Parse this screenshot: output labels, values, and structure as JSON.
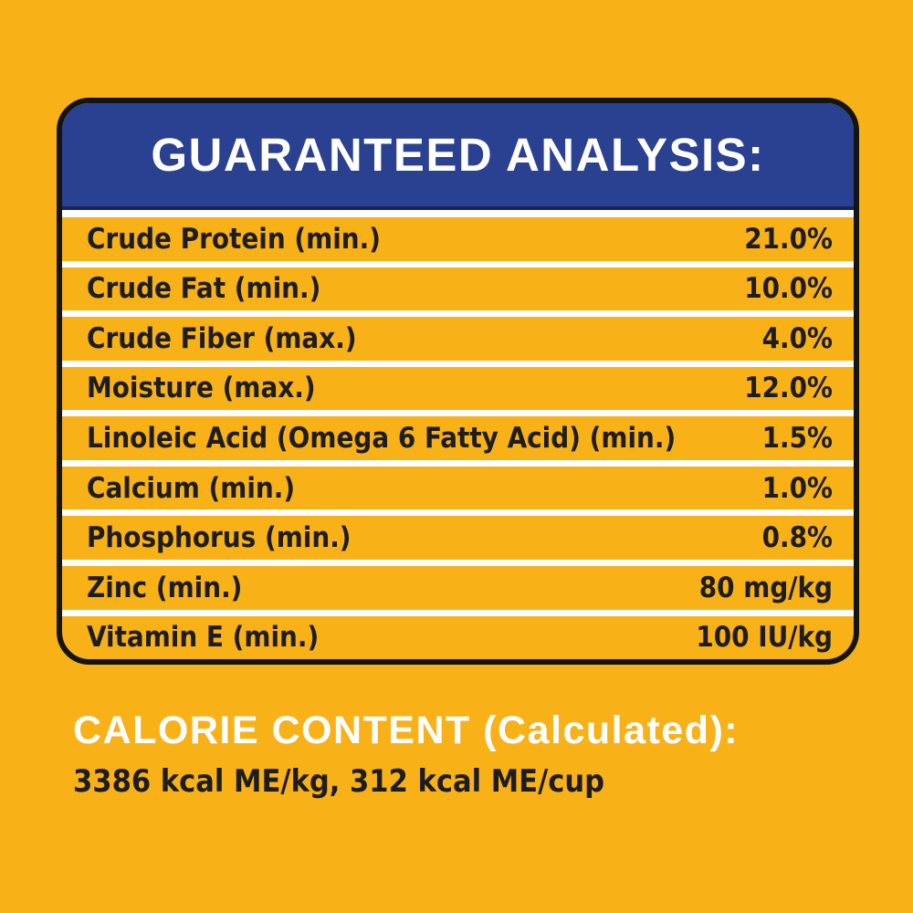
{
  "colors": {
    "background_yellow": "#F8B117",
    "header_navy": "#2A4090",
    "header_navy_edge": "#16255C",
    "outline_black": "#141414",
    "divider_white": "#FFFFFF",
    "text_dark": "#1D1D1B",
    "text_white": "#FFFFFF"
  },
  "guaranteed_analysis": {
    "title": "GUARANTEED ANALYSIS:",
    "rows": [
      {
        "label": "Crude Protein (min.)",
        "value": "21.0%"
      },
      {
        "label": "Crude Fat (min.)",
        "value": "10.0%"
      },
      {
        "label": "Crude Fiber (max.)",
        "value": "4.0%"
      },
      {
        "label": "Moisture (max.)",
        "value": "12.0%"
      },
      {
        "label": "Linoleic Acid (Omega 6 Fatty Acid) (min.)",
        "value": "1.5%"
      },
      {
        "label": "Calcium (min.)",
        "value": "1.0%"
      },
      {
        "label": "Phosphorus (min.)",
        "value": "0.8%"
      },
      {
        "label": "Zinc (min.)",
        "value": "80 mg/kg"
      },
      {
        "label": "Vitamin E (min.)",
        "value": "100 IU/kg"
      }
    ]
  },
  "calorie_content": {
    "title": "CALORIE CONTENT (Calculated):",
    "values": "3386 kcal ME/kg, 312 kcal ME/cup"
  }
}
